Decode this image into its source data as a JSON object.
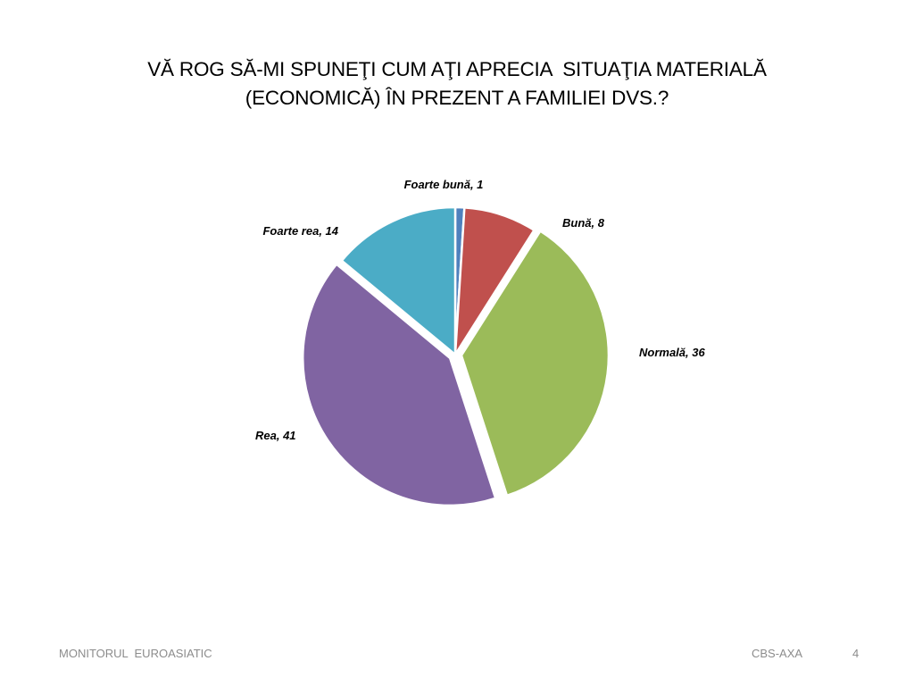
{
  "slide": {
    "title_line1": "VĂ ROG SĂ-MI SPUNEŢI CUM AŢI APRECIA  SITUAŢIA MATERIALĂ",
    "title_line2": "(ECONOMICĂ) ÎN PREZENT A FAMILIEI DVS.?",
    "footer_left": "MONITORUL  EUROASIATIC",
    "footer_right": "CBS-AXA",
    "page_number": "4"
  },
  "chart_data": {
    "type": "pie",
    "title": "",
    "show_legend": false,
    "data_labels": "category, value",
    "slices": [
      {
        "label": "Foarte bună, 1",
        "category": "Foarte bună",
        "value": 1,
        "color": "#4f81bd",
        "exploded": false
      },
      {
        "label": "Bună, 8",
        "category": "Bună",
        "value": 8,
        "color": "#c0504d",
        "exploded": false
      },
      {
        "label": "Normală, 36",
        "category": "Normală",
        "value": 36,
        "color": "#9bbb59",
        "exploded": true
      },
      {
        "label": "Rea, 41",
        "category": "Rea",
        "value": 41,
        "color": "#8064a2",
        "exploded": true
      },
      {
        "label": "Foarte rea, 14",
        "category": "Foarte rea",
        "value": 14,
        "color": "#4bacc6",
        "exploded": false
      }
    ]
  }
}
